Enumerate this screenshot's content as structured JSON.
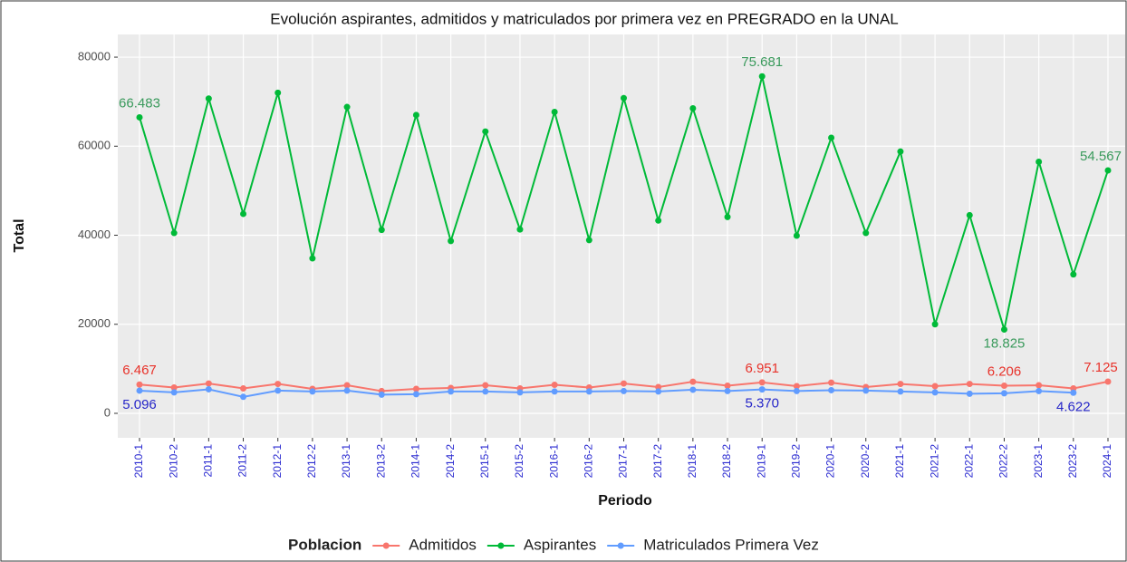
{
  "chart_data": {
    "type": "line",
    "title": "Evolución aspirantes, admitidos y matriculados por primera vez en PREGRADO en la UNAL",
    "x_label": "Periodo",
    "y_label": "Total",
    "legend_title": "Poblacion",
    "legend": "bottom",
    "grid": true,
    "categories": [
      "2010-1",
      "2010-2",
      "2011-1",
      "2011-2",
      "2012-1",
      "2012-2",
      "2013-1",
      "2013-2",
      "2014-1",
      "2014-2",
      "2015-1",
      "2015-2",
      "2016-1",
      "2016-2",
      "2017-1",
      "2017-2",
      "2018-1",
      "2018-2",
      "2019-1",
      "2019-2",
      "2020-1",
      "2020-2",
      "2021-1",
      "2021-2",
      "2022-1",
      "2022-2",
      "2023-1",
      "2023-2",
      "2024-1"
    ],
    "ylim": [
      -5500,
      85100
    ],
    "yticks": [
      0,
      20000,
      40000,
      60000,
      80000
    ],
    "series": [
      {
        "name": "Admitidos",
        "color": "#F8766D",
        "label_color": "#e8322a",
        "values": [
          6467,
          5800,
          6700,
          5600,
          6600,
          5500,
          6300,
          5000,
          5500,
          5700,
          6300,
          5600,
          6400,
          5800,
          6700,
          5900,
          7100,
          6200,
          6951,
          6100,
          6900,
          5900,
          6600,
          6100,
          6600,
          6206,
          6300,
          5600,
          7125
        ],
        "value_labels": [
          "6.467",
          null,
          null,
          null,
          null,
          null,
          null,
          null,
          null,
          null,
          null,
          null,
          null,
          null,
          null,
          null,
          null,
          null,
          "6.951",
          null,
          null,
          null,
          null,
          null,
          null,
          "6.206",
          null,
          null,
          "7.125"
        ]
      },
      {
        "name": "Aspirantes",
        "color": "#00BA38",
        "label_color": "#3a9a5c",
        "values": [
          66483,
          40500,
          70700,
          44800,
          72000,
          34800,
          68800,
          41200,
          67000,
          38700,
          63300,
          41300,
          67700,
          38900,
          70800,
          43300,
          68500,
          44100,
          75681,
          39900,
          61900,
          40500,
          58800,
          20000,
          44500,
          18825,
          56500,
          31200,
          54567
        ],
        "value_labels": [
          "66.483",
          null,
          null,
          null,
          null,
          null,
          null,
          null,
          null,
          null,
          null,
          null,
          null,
          null,
          null,
          null,
          null,
          null,
          "75.681",
          null,
          null,
          null,
          null,
          null,
          null,
          "18.825",
          null,
          null,
          "54.567"
        ]
      },
      {
        "name": "Matriculados Primera Vez",
        "color": "#619CFF",
        "label_color": "#2626c8",
        "values": [
          5096,
          4700,
          5400,
          3700,
          5100,
          4900,
          5100,
          4200,
          4300,
          4900,
          4900,
          4700,
          4900,
          4900,
          5000,
          4900,
          5300,
          5000,
          5370,
          5000,
          5200,
          5100,
          4900,
          4700,
          4400,
          4500,
          5000,
          4622,
          null
        ],
        "value_labels": [
          "5.096",
          null,
          null,
          null,
          null,
          null,
          null,
          null,
          null,
          null,
          null,
          null,
          null,
          null,
          null,
          null,
          null,
          null,
          "5.370",
          null,
          null,
          null,
          null,
          null,
          null,
          null,
          null,
          "4.622",
          null
        ]
      }
    ]
  }
}
